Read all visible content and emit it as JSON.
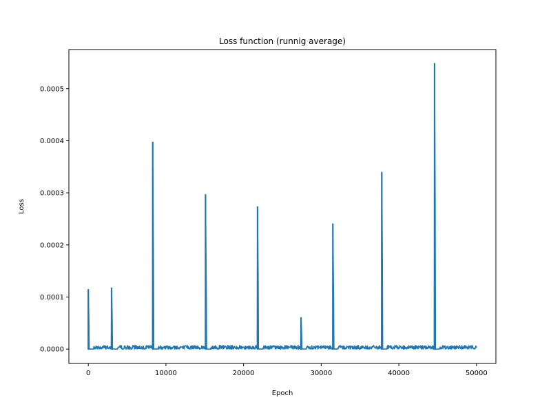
{
  "chart_data": {
    "type": "line",
    "title": "Loss function (runnig average)",
    "xlabel": "Epoch",
    "ylabel": "Loss",
    "xlim": [
      -2500,
      52500
    ],
    "ylim": [
      -2.75e-05,
      0.000575
    ],
    "xticks": [
      0,
      10000,
      20000,
      30000,
      40000,
      50000
    ],
    "xtick_labels": [
      "0",
      "10000",
      "20000",
      "30000",
      "40000",
      "50000"
    ],
    "yticks": [
      0,
      0.0001,
      0.0002,
      0.0003,
      0.0004,
      0.0005
    ],
    "ytick_labels": [
      "0.0000",
      "0.0001",
      "0.0002",
      "0.0003",
      "0.0004",
      "0.0005"
    ],
    "grid": false,
    "line_color": "#1f77b4",
    "baseline_noise_max": 7e-06,
    "x_range": [
      0,
      50000
    ],
    "spikes": [
      {
        "x": 0,
        "y": 0.000114
      },
      {
        "x": 3000,
        "y": 0.000117
      },
      {
        "x": 8300,
        "y": 0.000397
      },
      {
        "x": 15100,
        "y": 0.000296
      },
      {
        "x": 21800,
        "y": 0.000273
      },
      {
        "x": 27400,
        "y": 6e-05
      },
      {
        "x": 31500,
        "y": 0.00024
      },
      {
        "x": 37800,
        "y": 0.000339
      },
      {
        "x": 44600,
        "y": 0.000548
      }
    ]
  }
}
